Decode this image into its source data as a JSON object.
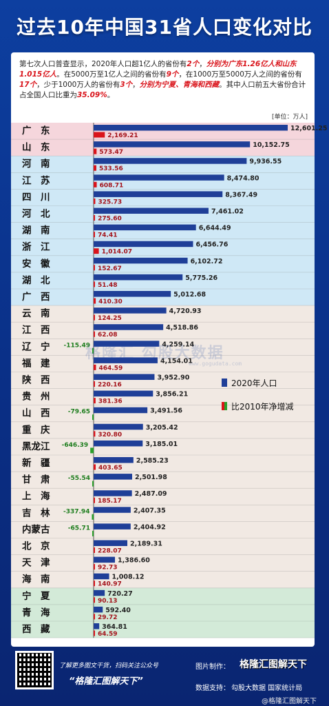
{
  "title": "过去10年中国31省人口变化对比",
  "intro": {
    "p1": "第七次人口普查显示，2020年人口超1亿人的省份有",
    "h1": "2个",
    "p2": "，",
    "h2": "分别为广东1.26亿人和山东1.015亿人",
    "p3": "。在5000万至1亿人之间的省份有",
    "h3": "9个",
    "p4": "，在1000万至5000万人之间的省份有",
    "h4": "17个",
    "p5": "，少于1000万人的省份有",
    "h5": "3个",
    "p6": "，",
    "h6": "分别为宁夏、青海和西藏",
    "p7": "。其中人口前五大省份合计占全国人口比重为",
    "h7": "35.09%",
    "p8": "。"
  },
  "unit": "[单位：万人]",
  "legend": {
    "pop": "2020年人口",
    "change": "比2010年净增减"
  },
  "watermark": {
    "text": "格隆汇  勾股大数据",
    "sub": "www.gogudata.com"
  },
  "colors": {
    "pop_bar": "#1f3f98",
    "increase_bar": "#d9141b",
    "decrease_bar": "#2aa02a",
    "group1_bg": "#f5d6dc",
    "group2_bg": "#cfe8f6",
    "group3_bg": "#f1e9e3",
    "group4_bg": "#d3ead8"
  },
  "chart_data": {
    "type": "bar",
    "categories": [
      "广　东",
      "山　东",
      "河　南",
      "江　苏",
      "四　川",
      "河　北",
      "湖　南",
      "浙　江",
      "安　徽",
      "湖　北",
      "广　西",
      "云　南",
      "江　西",
      "辽　宁",
      "福　建",
      "陕　西",
      "贵　州",
      "山　西",
      "重　庆",
      "黑龙江",
      "新　疆",
      "甘　肃",
      "上　海",
      "吉　林",
      "内蒙古",
      "北　京",
      "天　津",
      "海　南",
      "宁　夏",
      "青　海",
      "西　藏"
    ],
    "series": [
      {
        "name": "2020年人口",
        "values": [
          12601.25,
          10152.75,
          9936.55,
          8474.8,
          8367.49,
          7461.02,
          6644.49,
          6456.76,
          6102.72,
          5775.26,
          5012.68,
          4720.93,
          4518.86,
          4259.14,
          4154.01,
          3952.9,
          3856.21,
          3491.56,
          3205.42,
          3185.01,
          2585.23,
          2501.98,
          2487.09,
          2407.35,
          2404.92,
          2189.31,
          1386.6,
          1008.12,
          720.27,
          592.4,
          364.81
        ]
      },
      {
        "name": "比2010年净增减",
        "values": [
          2169.21,
          573.47,
          533.56,
          608.71,
          325.73,
          275.6,
          74.41,
          1014.07,
          152.67,
          51.48,
          410.3,
          124.25,
          62.08,
          -115.49,
          464.59,
          220.16,
          381.36,
          -79.65,
          320.8,
          -646.39,
          403.65,
          -55.54,
          185.17,
          -337.94,
          -65.71,
          228.07,
          92.73,
          140.97,
          90.13,
          29.72,
          64.59
        ]
      }
    ],
    "groups": [
      {
        "label": "超1亿人",
        "count": 2
      },
      {
        "label": "5000万至1亿人",
        "count": 9
      },
      {
        "label": "1000万至5000万人",
        "count": 17
      },
      {
        "label": "少于1000万人",
        "count": 3
      }
    ]
  },
  "footer": {
    "qr_label": "了解更多图文干货，扫码关注公众号",
    "qr_name": "“格隆汇图解天下”",
    "credit_made_label": "图片制作：",
    "credit_made_value": "格隆汇图解天下",
    "credit_data_label": "数据支持：",
    "credit_data_value": "勾股大数据  国家统计局",
    "weibo": "@格隆汇图解天下"
  }
}
